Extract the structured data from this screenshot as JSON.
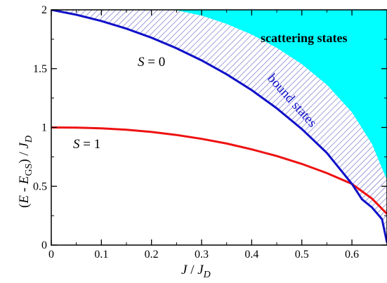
{
  "chart_data": {
    "type": "line",
    "title": "",
    "xlabel": {
      "main": "J",
      "sep": " / ",
      "base": "J",
      "sub": "D"
    },
    "ylabel": {
      "open": "(",
      "E1": "E",
      "minus": " - ",
      "E2": "E",
      "gs": "GS",
      "close": ") / ",
      "J": "J",
      "D": "D"
    },
    "xlim": [
      0,
      0.67
    ],
    "ylim": [
      0,
      2
    ],
    "xticks": [
      0,
      0.1,
      0.2,
      0.3,
      0.4,
      0.5,
      0.6
    ],
    "xtick_labels": [
      "0",
      "0.1",
      "0.2",
      "0.3",
      "0.4",
      "0.5",
      "0.6"
    ],
    "yticks": [
      0,
      0.5,
      1,
      1.5,
      2
    ],
    "ytick_labels": [
      "0",
      "0.5",
      "1",
      "1.5",
      "2"
    ],
    "grid": false,
    "colors": {
      "scattering": "#00ffff",
      "bound_hatch": "#7777cc",
      "s0": "#1010c8",
      "s1": "#ee1111"
    },
    "series": [
      {
        "label_parts": [
          "S",
          " = 0"
        ],
        "color": "#1010c8",
        "x": [
          0,
          0.05,
          0.1,
          0.15,
          0.2,
          0.25,
          0.3,
          0.35,
          0.4,
          0.45,
          0.5,
          0.55,
          0.6,
          0.62,
          0.64,
          0.66,
          0.67
        ],
        "y": [
          2.0,
          1.958,
          1.905,
          1.84,
          1.763,
          1.673,
          1.57,
          1.452,
          1.317,
          1.163,
          0.987,
          0.783,
          0.52,
          0.39,
          0.32,
          0.22,
          0.02
        ]
      },
      {
        "label_parts": [
          "S",
          " = 1"
        ],
        "color": "#ee1111",
        "x": [
          0,
          0.05,
          0.1,
          0.15,
          0.2,
          0.25,
          0.3,
          0.35,
          0.4,
          0.45,
          0.5,
          0.55,
          0.6,
          0.64,
          0.67
        ],
        "y": [
          1.0,
          0.999,
          0.993,
          0.98,
          0.962,
          0.936,
          0.903,
          0.863,
          0.814,
          0.757,
          0.69,
          0.612,
          0.52,
          0.395,
          0.265
        ]
      }
    ],
    "regions": [
      {
        "label": "scattering states",
        "color": "#00ffff",
        "lower_boundary": {
          "x": [
            0,
            0.05,
            0.1,
            0.15,
            0.2,
            0.25,
            0.3,
            0.35,
            0.4,
            0.45,
            0.5,
            0.55,
            0.6,
            0.64,
            0.67
          ],
          "y": [
            2.0,
            2.0,
            2.0,
            2.0,
            2.0,
            1.995,
            1.951,
            1.88,
            1.79,
            1.677,
            1.538,
            1.363,
            1.128,
            0.858,
            0.55
          ]
        }
      },
      {
        "label": "bound states",
        "fill": "hatched",
        "between": [
          "S = 0 curve",
          "scattering states edge"
        ]
      }
    ]
  }
}
